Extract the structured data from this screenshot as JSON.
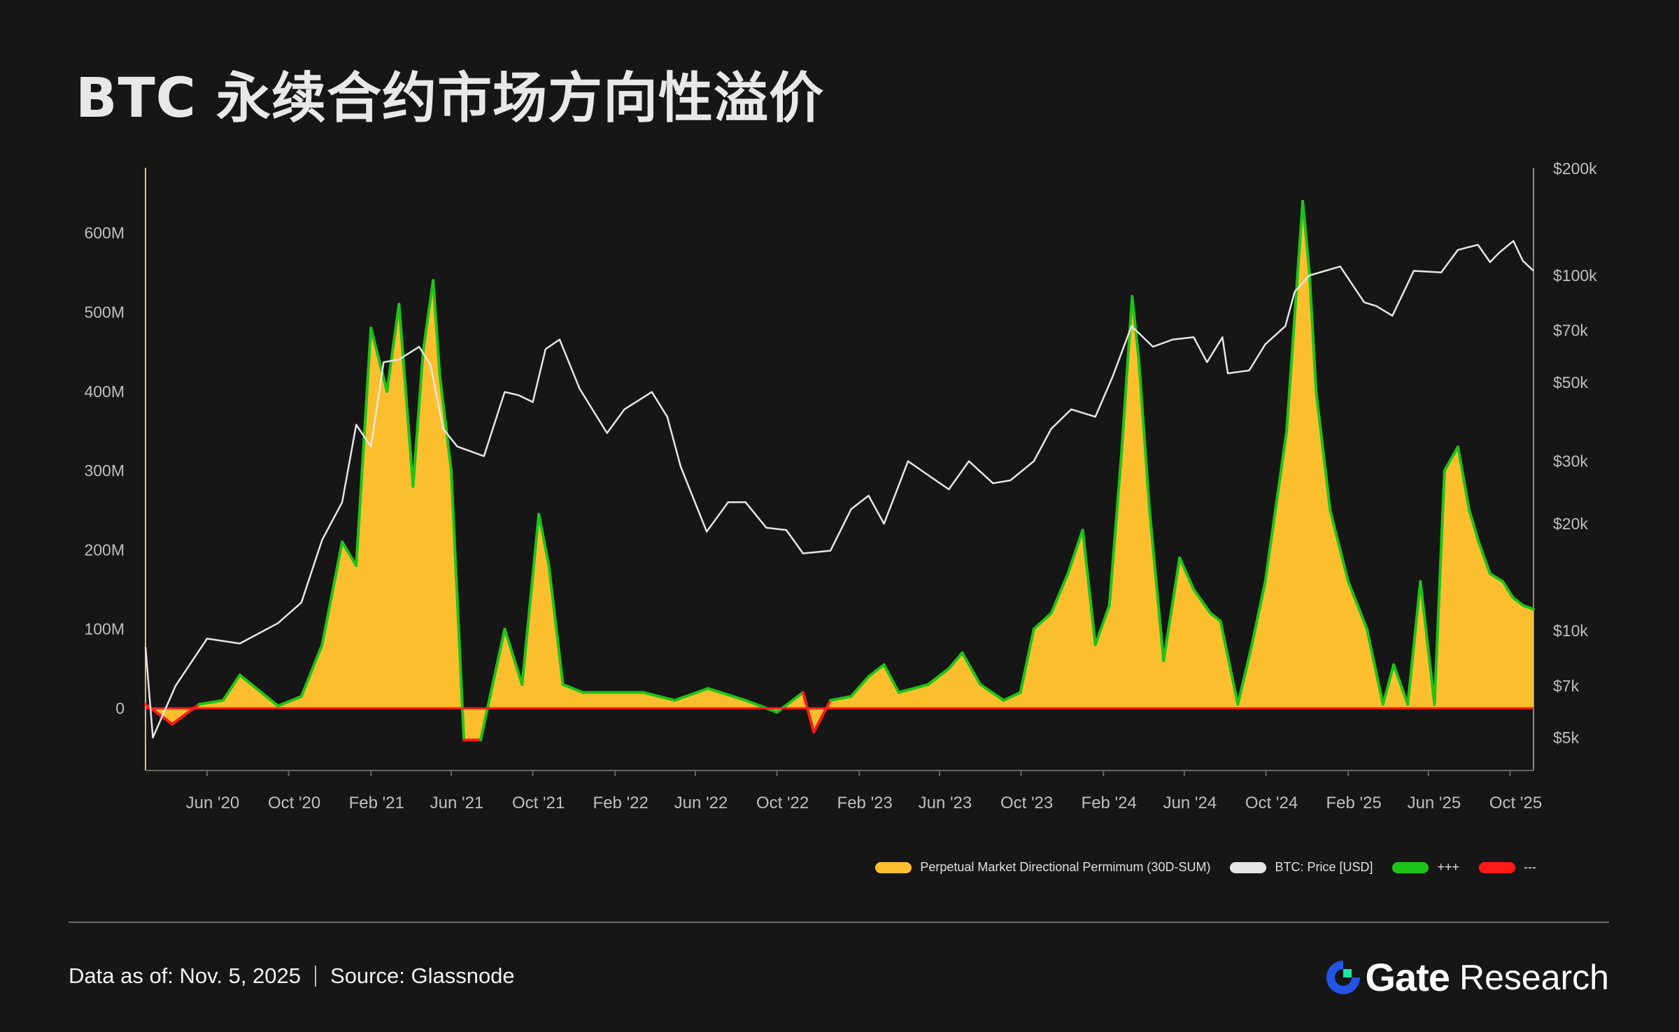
{
  "header": {
    "title": "BTC 永续合约市场方向性溢价"
  },
  "chart_data": {
    "type": "area",
    "title": "BTC 永续合约市场方向性溢价",
    "x_ticks": [
      "Jun '20",
      "Oct '20",
      "Feb '21",
      "Jun '21",
      "Oct '21",
      "Feb '22",
      "Jun '22",
      "Oct '22",
      "Feb '23",
      "Jun '23",
      "Oct '23",
      "Feb '24",
      "Jun '24",
      "Oct '24",
      "Feb '25",
      "Jun '25",
      "Oct '25"
    ],
    "y_left_ticks": [
      "600M",
      "500M",
      "400M",
      "300M",
      "200M",
      "100M",
      "0"
    ],
    "y_left_range": [
      -80,
      680
    ],
    "y_right_ticks": [
      "$200k",
      "$100k",
      "$70k",
      "$50k",
      "$30k",
      "$20k",
      "$10k",
      "$7k",
      "$5k"
    ],
    "y_right_scale": "log",
    "y_right_range": [
      4500,
      200000
    ],
    "x_range": [
      "2020-03-01",
      "2025-11-05"
    ],
    "grid": false,
    "legend_position": "bottom-right",
    "series": [
      {
        "name": "Perpetual Market Directional Permimum (30D-SUM)",
        "color": "#fbbf2d",
        "unit": "USD millions",
        "x": [
          "2020-03-01",
          "2020-04-10",
          "2020-05-20",
          "2020-06-25",
          "2020-07-20",
          "2020-09-15",
          "2020-10-20",
          "2020-11-20",
          "2020-12-20",
          "2021-01-10",
          "2021-02-01",
          "2021-02-25",
          "2021-03-15",
          "2021-04-05",
          "2021-04-20",
          "2021-05-05",
          "2021-05-15",
          "2021-06-01",
          "2021-06-20",
          "2021-07-15",
          "2021-08-20",
          "2021-09-15",
          "2021-10-10",
          "2021-10-25",
          "2021-11-15",
          "2021-12-15",
          "2022-01-15",
          "2022-03-15",
          "2022-05-01",
          "2022-06-20",
          "2022-08-15",
          "2022-10-01",
          "2022-11-09",
          "2022-11-25",
          "2022-12-20",
          "2023-01-20",
          "2023-02-15",
          "2023-03-10",
          "2023-04-01",
          "2023-05-15",
          "2023-06-15",
          "2023-07-05",
          "2023-08-01",
          "2023-09-05",
          "2023-09-30",
          "2023-10-20",
          "2023-11-15",
          "2023-12-10",
          "2024-01-01",
          "2024-01-20",
          "2024-02-10",
          "2024-02-28",
          "2024-03-15",
          "2024-03-25",
          "2024-04-10",
          "2024-05-01",
          "2024-05-25",
          "2024-06-15",
          "2024-07-10",
          "2024-07-25",
          "2024-08-20",
          "2024-09-10",
          "2024-09-30",
          "2024-11-01",
          "2024-11-25",
          "2024-12-05",
          "2024-12-15",
          "2025-01-05",
          "2025-02-01",
          "2025-03-01",
          "2025-03-25",
          "2025-04-10",
          "2025-05-01",
          "2025-05-20",
          "2025-06-10",
          "2025-06-25",
          "2025-07-15",
          "2025-08-01",
          "2025-08-15",
          "2025-09-01",
          "2025-09-20",
          "2025-10-05",
          "2025-10-20",
          "2025-11-05"
        ],
        "values": [
          5,
          -20,
          5,
          10,
          42,
          3,
          15,
          80,
          210,
          180,
          480,
          400,
          510,
          280,
          450,
          540,
          420,
          300,
          -40,
          -40,
          100,
          30,
          245,
          180,
          30,
          20,
          20,
          20,
          10,
          25,
          10,
          -5,
          20,
          -30,
          10,
          15,
          40,
          55,
          20,
          30,
          50,
          70,
          30,
          10,
          20,
          100,
          120,
          170,
          225,
          80,
          130,
          320,
          520,
          440,
          250,
          60,
          190,
          150,
          120,
          110,
          5,
          80,
          160,
          350,
          640,
          550,
          400,
          250,
          160,
          100,
          5,
          55,
          5,
          160,
          5,
          300,
          330,
          250,
          210,
          170,
          160,
          140,
          130,
          125
        ]
      },
      {
        "name": "BTC: Price [USD]",
        "color": "#e6e6e6",
        "unit": "USD",
        "x": [
          "2020-03-01",
          "2020-03-12",
          "2020-04-15",
          "2020-06-01",
          "2020-07-20",
          "2020-09-15",
          "2020-10-20",
          "2020-11-20",
          "2020-12-20",
          "2021-01-10",
          "2021-02-01",
          "2021-02-20",
          "2021-03-15",
          "2021-04-14",
          "2021-05-01",
          "2021-05-20",
          "2021-06-10",
          "2021-07-20",
          "2021-08-20",
          "2021-09-10",
          "2021-10-01",
          "2021-10-20",
          "2021-11-10",
          "2021-12-10",
          "2022-01-20",
          "2022-02-15",
          "2022-03-28",
          "2022-04-20",
          "2022-05-10",
          "2022-06-18",
          "2022-07-20",
          "2022-08-15",
          "2022-09-15",
          "2022-10-15",
          "2022-11-09",
          "2022-12-20",
          "2023-01-20",
          "2023-02-15",
          "2023-03-10",
          "2023-04-15",
          "2023-05-20",
          "2023-06-15",
          "2023-07-15",
          "2023-08-20",
          "2023-09-15",
          "2023-10-20",
          "2023-11-15",
          "2023-12-15",
          "2024-01-20",
          "2024-02-15",
          "2024-03-14",
          "2024-04-15",
          "2024-05-15",
          "2024-06-15",
          "2024-07-05",
          "2024-07-28",
          "2024-08-05",
          "2024-09-06",
          "2024-09-30",
          "2024-10-30",
          "2024-11-13",
          "2024-12-05",
          "2025-01-20",
          "2025-02-25",
          "2025-03-15",
          "2025-04-08",
          "2025-05-10",
          "2025-06-20",
          "2025-07-15",
          "2025-08-14",
          "2025-09-01",
          "2025-09-15",
          "2025-10-06",
          "2025-10-20",
          "2025-11-05"
        ],
        "values": [
          9000,
          5000,
          7000,
          9500,
          9200,
          10500,
          12000,
          18000,
          23000,
          38000,
          33000,
          57000,
          58000,
          63000,
          56000,
          37000,
          33000,
          31000,
          47000,
          46000,
          44000,
          62000,
          66000,
          48000,
          36000,
          42000,
          47000,
          40000,
          29000,
          19000,
          23000,
          23000,
          19500,
          19200,
          16500,
          16800,
          22000,
          24000,
          20000,
          30000,
          27000,
          25000,
          30000,
          26000,
          26500,
          30000,
          37000,
          42000,
          40000,
          52000,
          72000,
          63000,
          66000,
          67000,
          57000,
          67000,
          53000,
          54000,
          64000,
          72000,
          90000,
          100000,
          106000,
          84000,
          82000,
          77000,
          103000,
          102000,
          118000,
          122000,
          109000,
          116000,
          125000,
          110000,
          103000
        ]
      },
      {
        "name": "+++",
        "color": "#1dc417"
      },
      {
        "name": "---",
        "color": "#ff1a1a"
      }
    ]
  },
  "footer": {
    "date_label": "Data as of: Nov. 5, 2025",
    "source_label": "Source:  Glassnode",
    "brand_name": "Gate",
    "brand_sub": "Research"
  }
}
